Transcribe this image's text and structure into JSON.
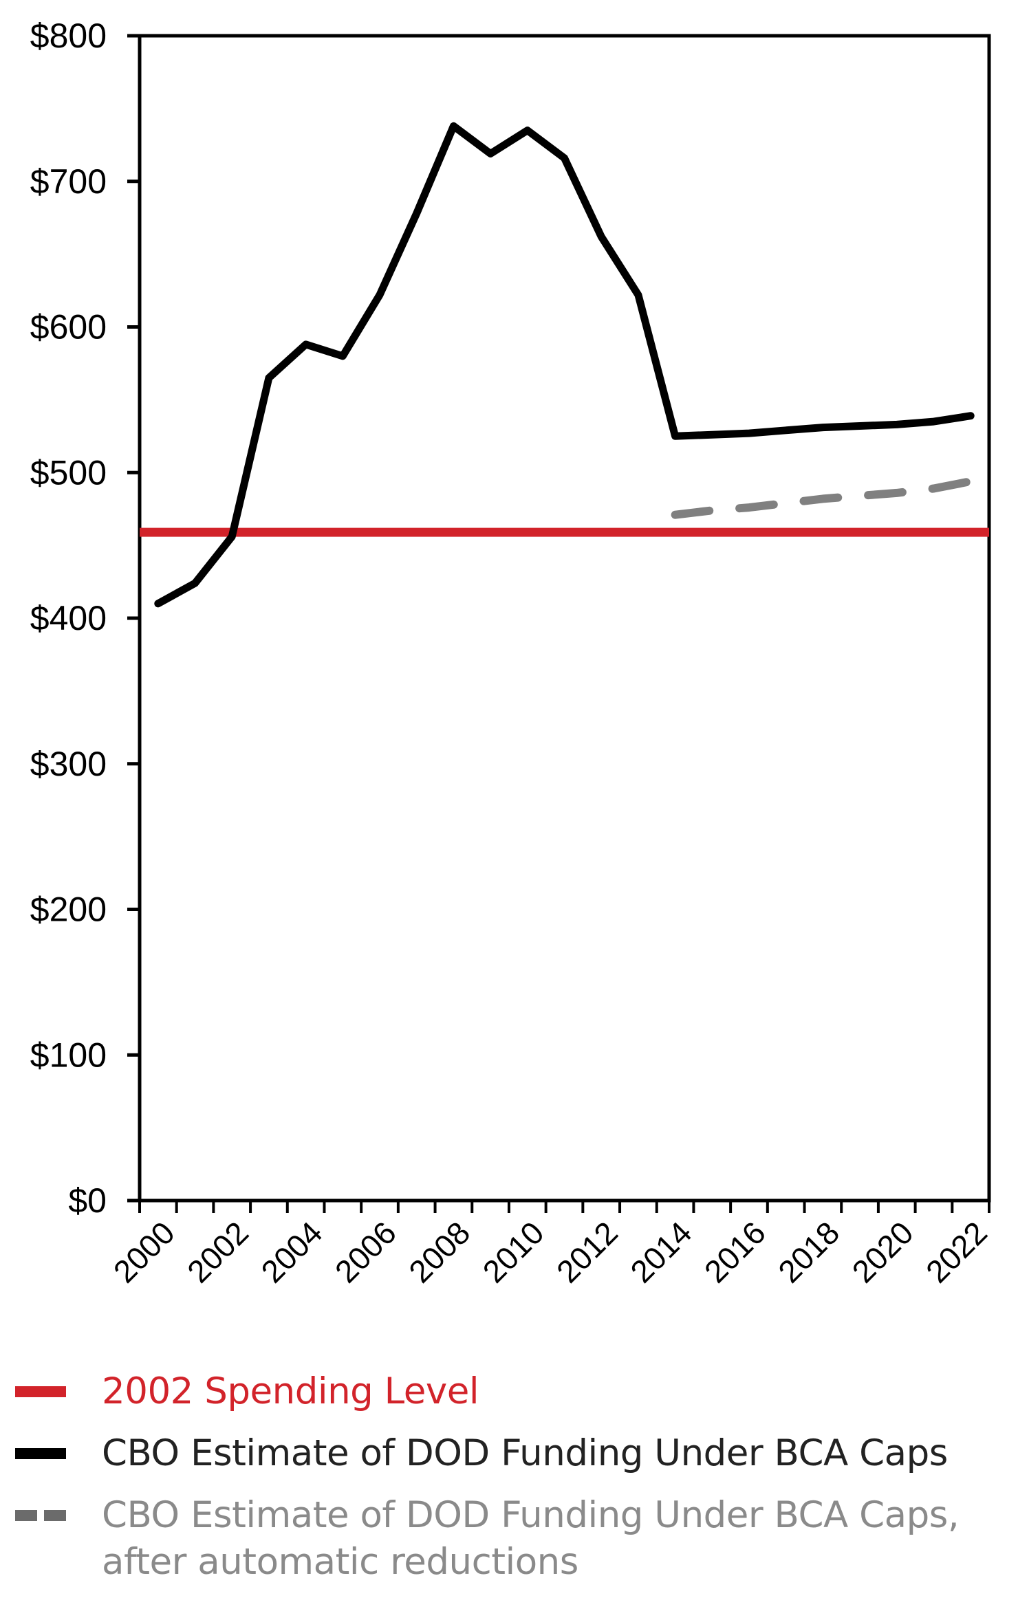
{
  "chart_data": {
    "type": "line",
    "title": "",
    "xlabel": "",
    "ylabel": "",
    "ylim": [
      0,
      800
    ],
    "xlim": [
      2000,
      2022
    ],
    "grid": false,
    "legend_position": "bottom",
    "y_ticks": [
      "$0",
      "$100",
      "$200",
      "$300",
      "$400",
      "$500",
      "$600",
      "$700",
      "$800"
    ],
    "y_tick_values": [
      0,
      100,
      200,
      300,
      400,
      500,
      600,
      700,
      800
    ],
    "x_tick_labels": [
      "2000",
      "2002",
      "2004",
      "2006",
      "2008",
      "2010",
      "2012",
      "2014",
      "2016",
      "2018",
      "2020",
      "2022"
    ],
    "x": [
      2000,
      2001,
      2002,
      2003,
      2004,
      2005,
      2006,
      2007,
      2008,
      2009,
      2010,
      2011,
      2012,
      2013,
      2014,
      2015,
      2016,
      2017,
      2018,
      2019,
      2020,
      2021,
      2022
    ],
    "series": [
      {
        "name": "2002 Spending Level",
        "color": "#d2232a",
        "style": "solid",
        "type": "hline",
        "value": 459
      },
      {
        "name": "CBO Estimate of DOD Funding Under BCA Caps",
        "color": "#000000",
        "style": "solid",
        "x": [
          2000,
          2001,
          2002,
          2003,
          2004,
          2005,
          2006,
          2007,
          2008,
          2009,
          2010,
          2011,
          2012,
          2013,
          2014,
          2015,
          2016,
          2017,
          2018,
          2019,
          2020,
          2021,
          2022
        ],
        "values": [
          410,
          424,
          456,
          565,
          588,
          580,
          622,
          678,
          738,
          719,
          735,
          716,
          662,
          622,
          525,
          526,
          527,
          529,
          531,
          532,
          533,
          535,
          539
        ]
      },
      {
        "name": "CBO Estimate of DOD Funding Under BCA Caps, after automatic reductions",
        "color": "#808080",
        "style": "dashed",
        "x": [
          2014,
          2015,
          2016,
          2017,
          2018,
          2019,
          2020,
          2021,
          2022
        ],
        "values": [
          471,
          474,
          476,
          479,
          482,
          484,
          486,
          489,
          494
        ]
      }
    ]
  },
  "legend": {
    "items": [
      {
        "label": "2002 Spending Level",
        "swatch": "red-solid"
      },
      {
        "label": "CBO Estimate of DOD Funding Under BCA Caps",
        "swatch": "black-solid"
      },
      {
        "label_line1": "CBO Estimate of DOD Funding Under BCA Caps,",
        "label_line2": "after automatic reductions",
        "swatch": "gray-dashed"
      }
    ]
  }
}
